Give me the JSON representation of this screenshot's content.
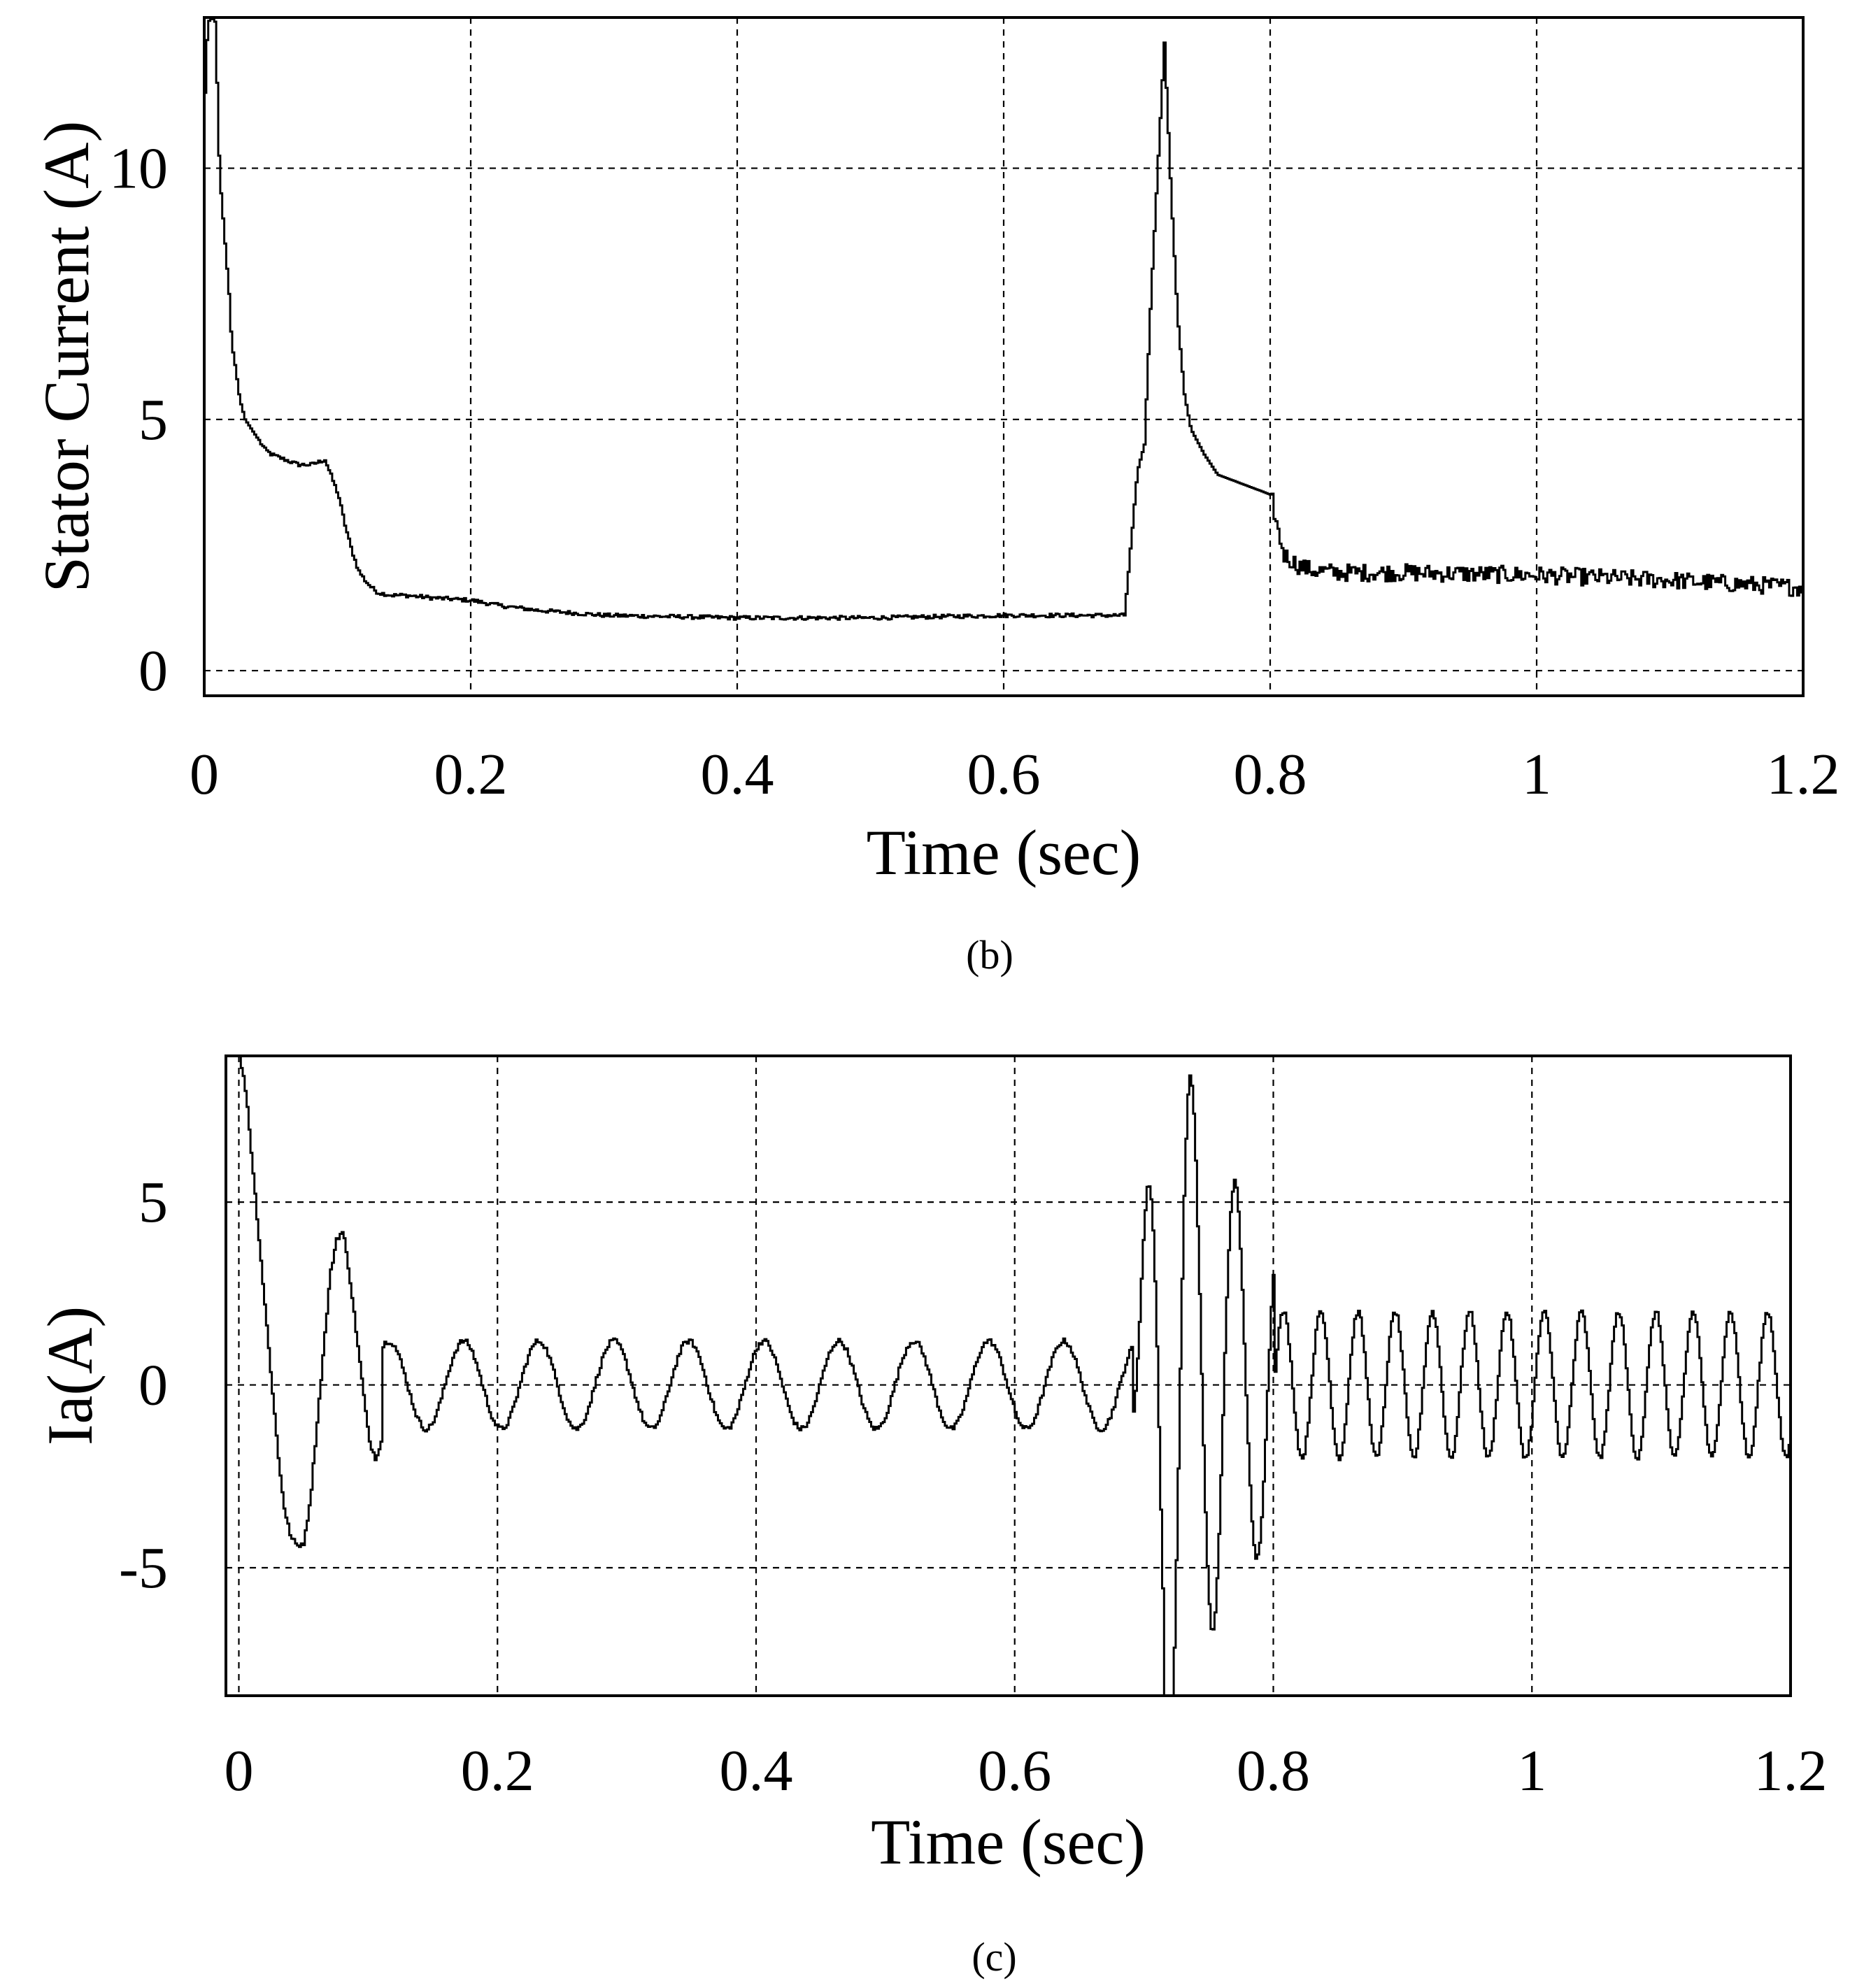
{
  "chart_data": [
    {
      "type": "line",
      "caption": "(b)",
      "xlabel": "Time (sec)",
      "ylabel": "Stator Current (A)",
      "xlim": [
        0,
        1.2
      ],
      "ylim": [
        -0.5,
        13
      ],
      "xticks": [
        0,
        0.2,
        0.4,
        0.6,
        0.8,
        1,
        1.2
      ],
      "xtick_labels": [
        "0",
        "0.2",
        "0.4",
        "0.6",
        "0.8",
        "1",
        "1.2"
      ],
      "yticks": [
        0,
        5,
        10
      ],
      "ytick_labels": [
        "0",
        "5",
        "10"
      ],
      "grid": true,
      "series": [
        {
          "x": [
            0,
            0.002,
            0.005,
            0.008,
            0.01,
            0.012,
            0.015,
            0.018,
            0.02,
            0.023,
            0.026,
            0.03,
            0.035,
            0.04,
            0.045,
            0.05,
            0.06,
            0.07,
            0.08,
            0.09,
            0.1,
            0.105,
            0.11,
            0.115,
            0.12,
            0.125,
            0.13,
            0.14,
            0.15,
            0.17,
            0.2,
            0.22,
            0.25,
            0.3,
            0.4,
            0.5,
            0.6,
            0.69,
            0.7,
            0.705,
            0.71,
            0.715,
            0.72,
            0.725,
            0.73,
            0.735,
            0.74,
            0.75,
            0.76,
            0.78,
            0.8,
            0.805,
            0.81,
            0.82,
            0.83,
            0.85,
            0.9,
            1.0,
            1.1,
            1.2
          ],
          "y": [
            11.5,
            12.9,
            13,
            12.9,
            10.5,
            9.5,
            8.5,
            7.5,
            6.5,
            6,
            5.4,
            5,
            4.8,
            4.6,
            4.4,
            4.3,
            4.2,
            4.1,
            4.1,
            4.2,
            3.5,
            2.9,
            2.4,
            2.0,
            1.8,
            1.65,
            1.55,
            1.5,
            1.5,
            1.45,
            1.4,
            1.3,
            1.2,
            1.1,
            1.05,
            1.05,
            1.1,
            1.1,
            4.0,
            4.5,
            7.5,
            10.0,
            12.5,
            9.5,
            7.0,
            5.5,
            4.8,
            4.3,
            3.9,
            3.7,
            3.5,
            2.8,
            2.3,
            2.1,
            2.0,
            1.95,
            1.95,
            1.9,
            1.8,
            1.65
          ]
        }
      ]
    },
    {
      "type": "line",
      "caption": "(c)",
      "xlabel": "Time (sec)",
      "ylabel": "Ia(A)",
      "xlim": [
        -0.01,
        1.2
      ],
      "ylim": [
        -8.5,
        9
      ],
      "xticks": [
        0,
        0.2,
        0.4,
        0.6,
        0.8,
        1,
        1.2
      ],
      "xtick_labels": [
        "0",
        "0.2",
        "0.4",
        "0.6",
        "0.8",
        "1",
        "1.2"
      ],
      "yticks": [
        -5,
        0,
        5
      ],
      "ytick_labels": [
        "-5",
        "0",
        "5"
      ],
      "grid": true,
      "series": [
        {
          "x": [
            0,
            0.005,
            0.01,
            0.015,
            0.02,
            0.025,
            0.03,
            0.035,
            0.04,
            0.045,
            0.05,
            0.055,
            0.06,
            0.065,
            0.07,
            0.075,
            0.08,
            0.085,
            0.09,
            0.095,
            0.1,
            0.105,
            0.11
          ],
          "y": [
            9.0,
            8.0,
            6.0,
            4.0,
            2.0,
            0.0,
            -2.0,
            -3.5,
            -4.2,
            -4.4,
            -4.3,
            -3.0,
            -1.0,
            1.0,
            3.0,
            4.0,
            4.2,
            3.0,
            1.5,
            0.0,
            -1.5,
            -2.0,
            -1.5
          ]
        }
      ]
    }
  ]
}
